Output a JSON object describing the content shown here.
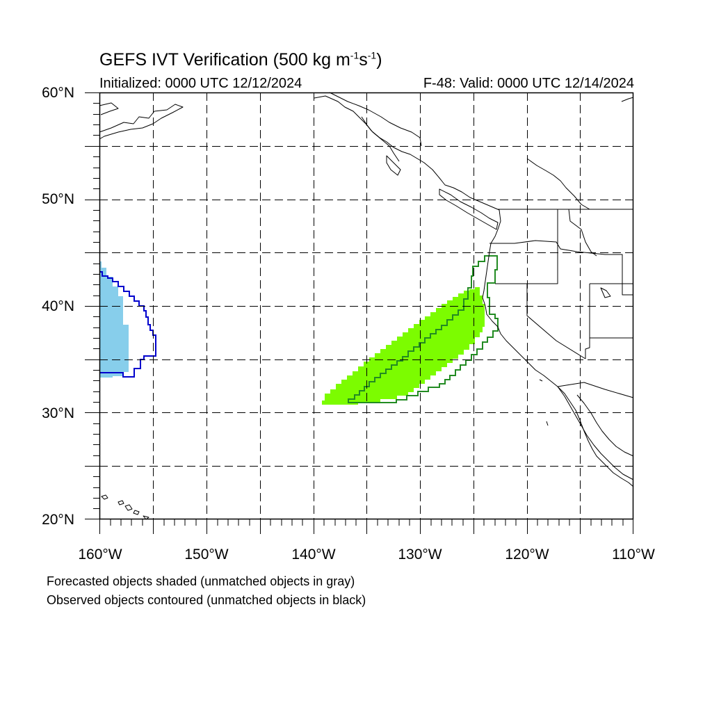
{
  "title": {
    "prefix": "GEFS IVT Verification (500 kg m",
    "exp1": "-1",
    "mid": "s",
    "exp2": "-1",
    "suffix": ")"
  },
  "initialized": "Initialized: 0000 UTC 12/12/2024",
  "valid": "F-48: Valid: 0000 UTC 12/14/2024",
  "lat_labels": [
    "60°N",
    "50°N",
    "40°N",
    "30°N",
    "20°N"
  ],
  "lon_labels": [
    "160°W",
    "150°W",
    "140°W",
    "130°W",
    "120°W",
    "110°W"
  ],
  "notes": {
    "forecast": "Forecasted objects shaded (unmatched objects in gray)",
    "observed": "Observed objects contoured (unmatched objects in black)"
  },
  "colors": {
    "object1_fill": "#87ceeb",
    "object1_contour": "#0000cd",
    "object2_fill": "#7cfc00",
    "object2_contour": "#228b22",
    "coastline": "#000000",
    "grid": "#000000"
  },
  "map": {
    "lon_range": [
      -160,
      -110
    ],
    "lat_range": [
      20,
      60
    ],
    "projection": "cylindrical-equidistant",
    "grid": "dashed every 5 degrees"
  }
}
